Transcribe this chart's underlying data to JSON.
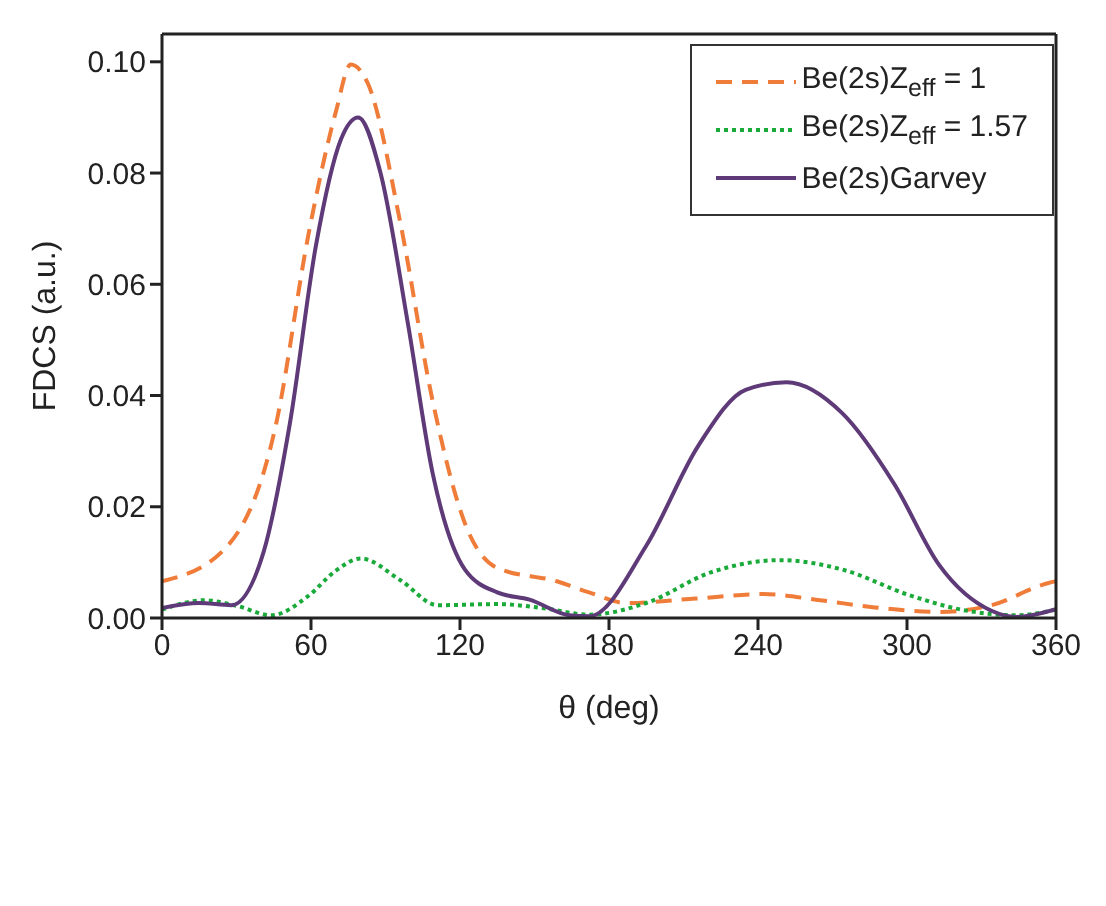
{
  "chart_data": {
    "type": "line",
    "xlabel": "θ (deg)",
    "ylabel": "FDCS (a.u.)",
    "xlim": [
      0,
      360
    ],
    "xticks": [
      0,
      60,
      120,
      180,
      240,
      300,
      360
    ],
    "ylim": [
      0,
      0.105
    ],
    "yticks": [
      {
        "value": 0,
        "label": "0.00"
      },
      {
        "value": 0.02,
        "label": "0.02"
      },
      {
        "value": 0.04,
        "label": "0.04"
      },
      {
        "value": 0.06,
        "label": "0.06"
      },
      {
        "value": 0.08,
        "label": "0.08"
      },
      {
        "value": 0.1,
        "label": "0.10"
      }
    ],
    "legend": "top right",
    "marker": "none",
    "series": [
      {
        "name": "Be(2s)Z$_{eff}$ = 1",
        "color": "#f07c3a",
        "line_style": "dashed",
        "x": [
          0,
          25,
          46,
          59,
          70,
          76,
          83,
          96,
          109,
          122,
          135,
          159,
          172,
          187,
          215,
          242,
          265,
          287,
          313,
          334,
          357,
          360
        ],
        "values": [
          0.0066,
          0.0123,
          0.035,
          0.069,
          0.091,
          0.0995,
          0.096,
          0.071,
          0.039,
          0.017,
          0.009,
          0.0066,
          0.0046,
          0.0027,
          0.0035,
          0.0043,
          0.0032,
          0.0019,
          0.0011,
          0.0023,
          0.0063,
          0.0066
        ]
      },
      {
        "name": "Be(2s)Z$_{eff}$ = 1.57",
        "color": "#1aaa3a",
        "line_style": "dotted",
        "x": [
          0,
          17,
          30,
          44,
          59,
          70,
          80,
          96,
          111,
          135,
          153,
          172,
          195,
          221,
          249,
          274,
          301,
          323,
          344,
          360
        ],
        "values": [
          0.0015,
          0.0032,
          0.0022,
          0.0005,
          0.004,
          0.0085,
          0.0107,
          0.0068,
          0.0023,
          0.0025,
          0.0018,
          0.0006,
          0.0027,
          0.0082,
          0.0104,
          0.0087,
          0.0041,
          0.0014,
          0.0005,
          0.0015
        ]
      },
      {
        "name": "Be(2s)Garvey",
        "color": "#5e3a78",
        "line_style": "solid",
        "x": [
          0,
          15,
          28,
          41,
          51.5,
          62,
          72,
          79,
          88,
          99,
          109,
          122,
          135,
          148,
          164,
          172,
          195,
          216,
          235,
          251.5,
          274,
          295,
          313,
          334,
          344,
          360
        ],
        "values": [
          0.0018,
          0.0027,
          0.0023,
          0.012,
          0.035,
          0.067,
          0.086,
          0.09,
          0.08,
          0.053,
          0.026,
          0.0087,
          0.0046,
          0.0033,
          0.0005,
          0.0003,
          0.013,
          0.031,
          0.041,
          0.0424,
          0.0368,
          0.024,
          0.0095,
          0.0013,
          0.0002,
          0.0016
        ]
      }
    ]
  }
}
